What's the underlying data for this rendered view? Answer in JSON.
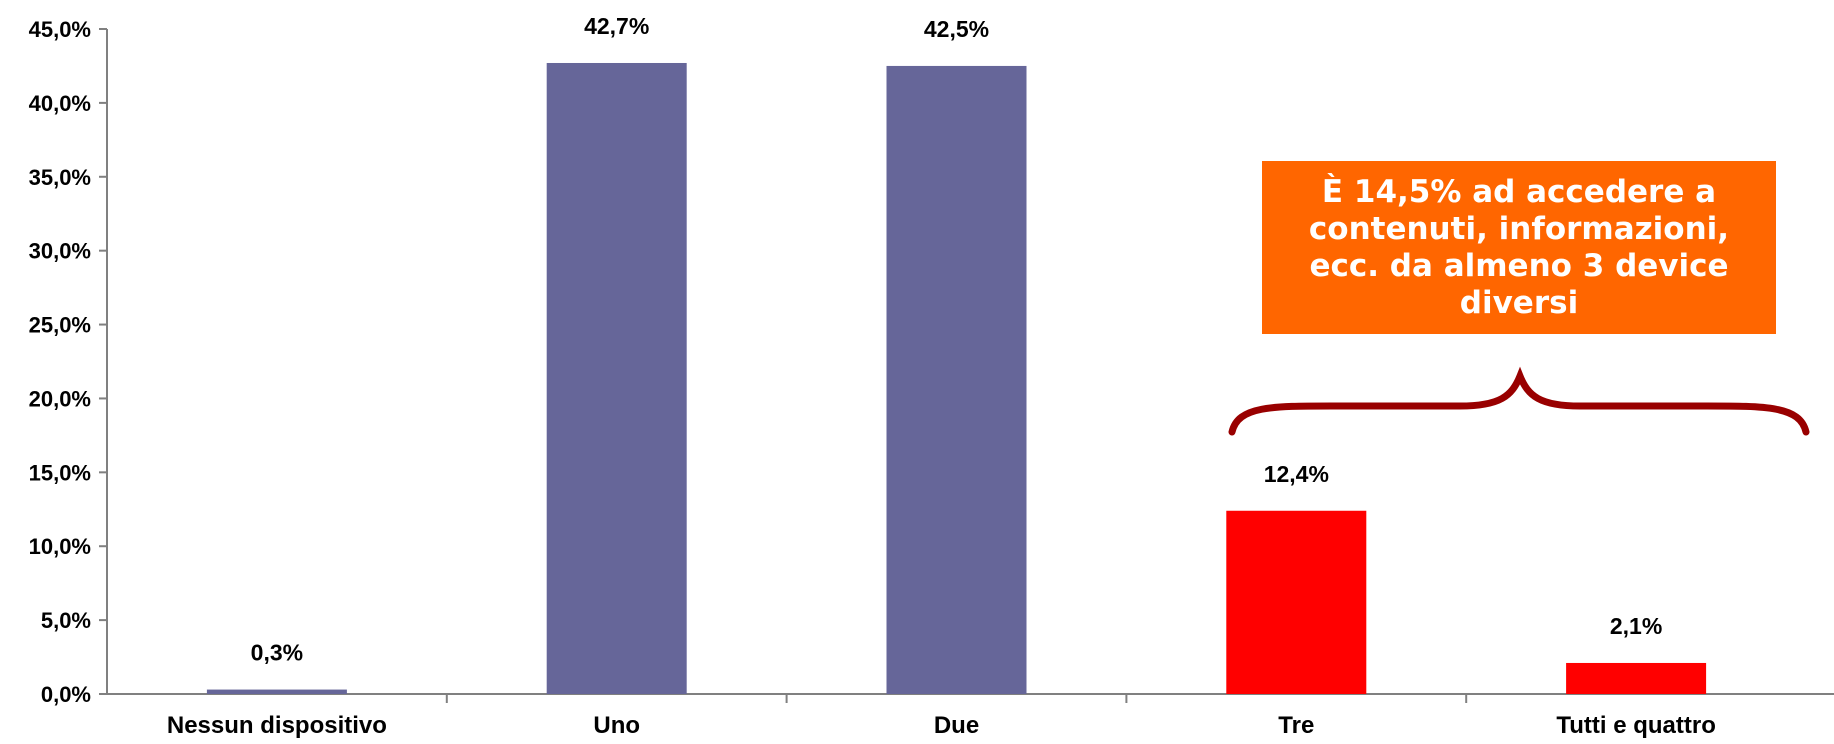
{
  "chart_data": {
    "type": "bar",
    "categories": [
      "Nessun dispositivo",
      "Uno",
      "Due",
      "Tre",
      "Tutti e quattro"
    ],
    "values": [
      0.3,
      42.7,
      42.5,
      12.4,
      2.1
    ],
    "value_labels": [
      "0,3%",
      "42,7%",
      "42,5%",
      "12,4%",
      "2,1%"
    ],
    "bar_colors": [
      "#666699",
      "#666699",
      "#666699",
      "#ff0000",
      "#ff0000"
    ],
    "ylim": [
      0,
      45
    ],
    "y_ticks": [
      0,
      5,
      10,
      15,
      20,
      25,
      30,
      35,
      40,
      45
    ],
    "y_tick_labels": [
      "0,0%",
      "5,0%",
      "10,0%",
      "15,0%",
      "20,0%",
      "25,0%",
      "30,0%",
      "35,0%",
      "40,0%",
      "45,0%"
    ],
    "grid": false,
    "legend": "none",
    "annotation": {
      "text": "È 14,5% ad accedere a contenuti, informazioni, ecc. da almeno 3 device diversi",
      "background": "#ff6600",
      "brace_color": "#990000",
      "applies_to": [
        "Tre",
        "Tutti e quattro"
      ]
    }
  }
}
